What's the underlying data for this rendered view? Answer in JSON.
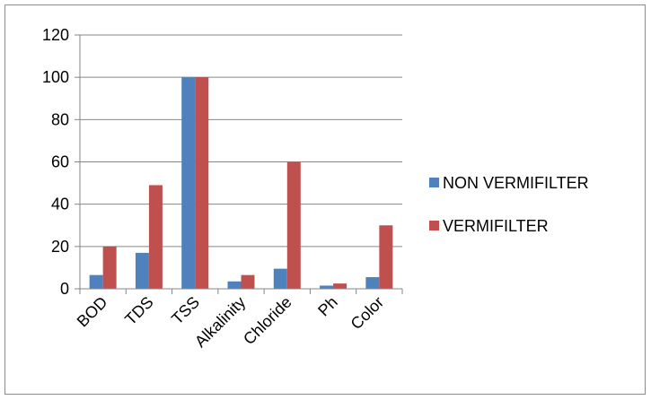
{
  "chart_data": {
    "type": "bar",
    "categories": [
      "BOD",
      "TDS",
      "TSS",
      "Alkalinity",
      "Chloride",
      "Ph",
      "Color"
    ],
    "series": [
      {
        "name": "NON VERMIFILTER",
        "color": "#4f81bd",
        "values": [
          6.5,
          17,
          100,
          3.5,
          9.5,
          1.5,
          5.5
        ]
      },
      {
        "name": "VERMIFILTER",
        "color": "#c0504d",
        "values": [
          20,
          49,
          100,
          6.5,
          60,
          2.5,
          30
        ]
      }
    ],
    "ylim": [
      0,
      120
    ],
    "yticks": [
      0,
      20,
      40,
      60,
      80,
      100,
      120
    ],
    "grid": true,
    "legend_position": "right"
  }
}
